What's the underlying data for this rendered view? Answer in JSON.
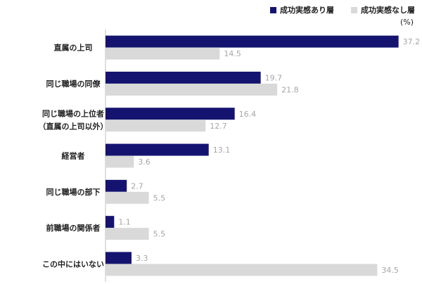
{
  "chart_data": {
    "type": "bar",
    "orientation": "horizontal",
    "unit": "(%)",
    "categories": [
      [
        "直属の上司"
      ],
      [
        "同じ職場の同僚"
      ],
      [
        "同じ職場の上位者",
        "（直属の上司以外）"
      ],
      [
        "経営者"
      ],
      [
        "同じ職場の部下"
      ],
      [
        "前職場の関係者"
      ],
      [
        "この中にはいない"
      ]
    ],
    "series": [
      {
        "name": "成功実感あり層",
        "color": "#141470",
        "values": [
          37.2,
          19.7,
          16.4,
          13.1,
          2.7,
          1.1,
          3.3
        ]
      },
      {
        "name": "成功実感なし層",
        "color": "#d9d9d9",
        "values": [
          14.5,
          21.8,
          12.7,
          3.6,
          5.5,
          5.5,
          34.5
        ]
      }
    ],
    "xlim": [
      0,
      40
    ],
    "grid": false,
    "legend_position": "top-right"
  }
}
